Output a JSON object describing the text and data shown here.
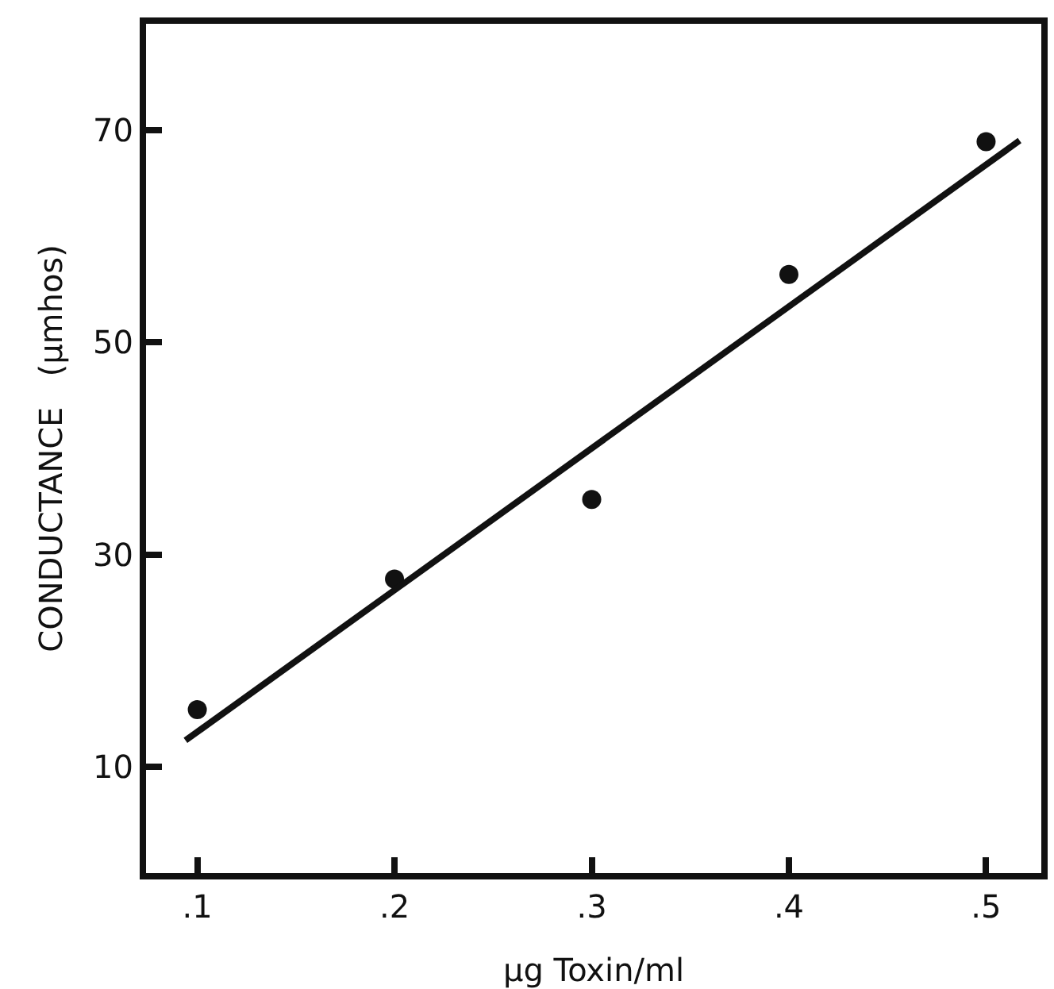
{
  "chart_data": {
    "type": "scatter",
    "xlabel": "μg Toxin/ml",
    "ylabel": "CONDUCTANCE   (μmhos)",
    "x": [
      0.1,
      0.2,
      0.3,
      0.4,
      0.5
    ],
    "series": [
      {
        "color": "#111111",
        "values": [
          15.4,
          27.7,
          35.2,
          56.4,
          68.9
        ],
        "marker": "circle"
      },
      {
        "type": "line",
        "color": "#111111",
        "x": [
          0.094,
          0.517
        ],
        "values": [
          12.5,
          69.0
        ],
        "line_style": "solid"
      }
    ],
    "xlim": [
      0.074,
      0.528
    ],
    "xticks": [
      {
        "value": 0.1,
        "label": ".1"
      },
      {
        "value": 0.2,
        "label": ".2"
      },
      {
        "value": 0.3,
        "label": ".3"
      },
      {
        "value": 0.4,
        "label": ".4"
      },
      {
        "value": 0.5,
        "label": ".5"
      }
    ],
    "ylim": [
      0,
      80
    ],
    "yticks": [
      10,
      30,
      50,
      70
    ],
    "grid": false,
    "legend": false
  }
}
